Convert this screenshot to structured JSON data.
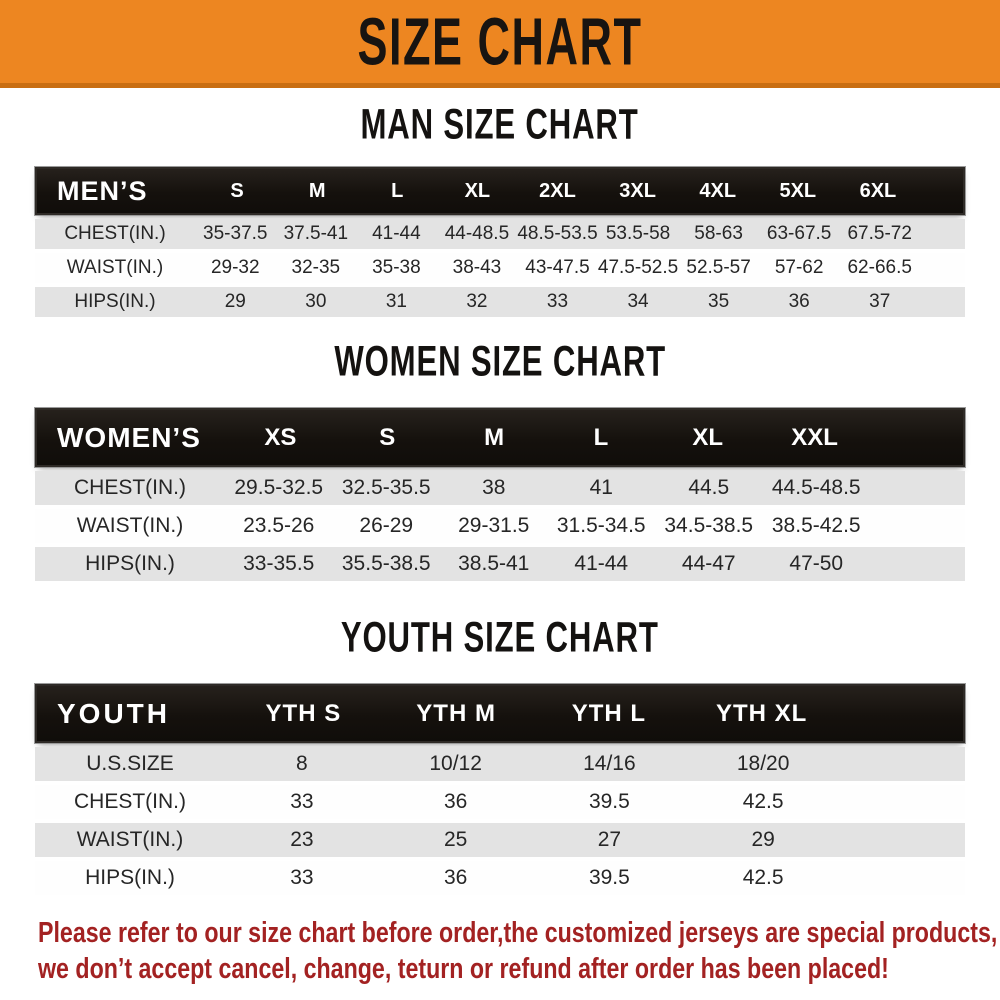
{
  "banner": {
    "title": "SIZE CHART"
  },
  "sections": {
    "men": {
      "title": "MAN SIZE CHART",
      "table": {
        "header_label": "MEN’S",
        "columns": [
          "S",
          "M",
          "L",
          "XL",
          "2XL",
          "3XL",
          "4XL",
          "5XL",
          "6XL"
        ],
        "rows": [
          {
            "label": "CHEST(IN.)",
            "values": [
              "35-37.5",
              "37.5-41",
              "41-44",
              "44-48.5",
              "48.5-53.5",
              "53.5-58",
              "58-63",
              "63-67.5",
              "67.5-72"
            ]
          },
          {
            "label": "WAIST(IN.)",
            "values": [
              "29-32",
              "32-35",
              "35-38",
              "38-43",
              "43-47.5",
              "47.5-52.5",
              "52.5-57",
              "57-62",
              "62-66.5"
            ]
          },
          {
            "label": "HIPS(IN.)",
            "values": [
              "29",
              "30",
              "31",
              "32",
              "33",
              "34",
              "35",
              "36",
              "37"
            ]
          }
        ]
      }
    },
    "women": {
      "title": "WOMEN SIZE CHART",
      "table": {
        "header_label": "WOMEN’S",
        "columns": [
          "XS",
          "S",
          "M",
          "L",
          "XL",
          "XXL"
        ],
        "rows": [
          {
            "label": "CHEST(IN.)",
            "values": [
              "29.5-32.5",
              "32.5-35.5",
              "38",
              "41",
              "44.5",
              "44.5-48.5"
            ]
          },
          {
            "label": "WAIST(IN.)",
            "values": [
              "23.5-26",
              "26-29",
              "29-31.5",
              "31.5-34.5",
              "34.5-38.5",
              "38.5-42.5"
            ]
          },
          {
            "label": "HIPS(IN.)",
            "values": [
              "33-35.5",
              "35.5-38.5",
              "38.5-41",
              "41-44",
              "44-47",
              "47-50"
            ]
          }
        ]
      }
    },
    "youth": {
      "title": "YOUTH SIZE CHART",
      "table": {
        "header_label": "YOUTH",
        "columns": [
          "YTH S",
          "YTH M",
          "YTH L",
          "YTH XL"
        ],
        "rows": [
          {
            "label": "U.S.SIZE",
            "values": [
              "8",
              "10/12",
              "14/16",
              "18/20"
            ]
          },
          {
            "label": "CHEST(IN.)",
            "values": [
              "33",
              "36",
              "39.5",
              "42.5"
            ]
          },
          {
            "label": "WAIST(IN.)",
            "values": [
              "23",
              "25",
              "27",
              "29"
            ]
          },
          {
            "label": "HIPS(IN.)",
            "values": [
              "33",
              "36",
              "39.5",
              "42.5"
            ]
          }
        ]
      }
    }
  },
  "footer": {
    "line1": "Please refer to our size chart before order,the customized jerseys are special products,",
    "line2": "we don’t accept cancel, change, teturn or refund after order has been placed!"
  },
  "colors": {
    "banner_orange": "#ed8621",
    "banner_edge": "#c96e12",
    "header_black": "#15110d",
    "row_gray": "#e3e3e3",
    "notice_red": "#a32222"
  }
}
